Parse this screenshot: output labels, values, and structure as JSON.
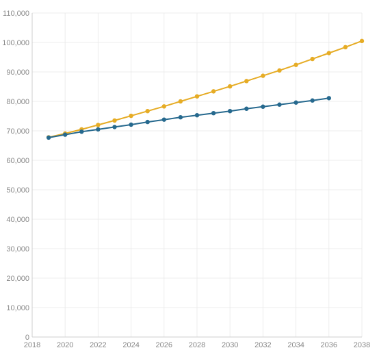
{
  "chart_data": {
    "type": "line",
    "title": "",
    "xlabel": "",
    "ylabel": "",
    "xlim": [
      2018,
      2038
    ],
    "ylim": [
      0,
      110000
    ],
    "x_ticks": [
      2018,
      2020,
      2022,
      2024,
      2026,
      2028,
      2030,
      2032,
      2034,
      2036,
      2038
    ],
    "x_tick_labels": [
      "2018",
      "2020",
      "2022",
      "2024",
      "2026",
      "2028",
      "2030",
      "2032",
      "2034",
      "2036",
      "2038"
    ],
    "y_ticks": [
      0,
      10000,
      20000,
      30000,
      40000,
      50000,
      60000,
      70000,
      80000,
      90000,
      100000,
      110000
    ],
    "y_tick_labels": [
      "0",
      "10,000",
      "20,000",
      "30,000",
      "40,000",
      "50,000",
      "60,000",
      "70,000",
      "80,000",
      "90,000",
      "100,000",
      "110,000"
    ],
    "grid": true,
    "legend": "none",
    "series": [
      {
        "color": "#e6ac25",
        "x": [
          2019,
          2020,
          2021,
          2022,
          2023,
          2024,
          2025,
          2026,
          2027,
          2028,
          2029,
          2030,
          2031,
          2032,
          2033,
          2034,
          2035,
          2036,
          2037,
          2038
        ],
        "values": [
          67800,
          69100,
          70500,
          72000,
          73500,
          75100,
          76700,
          78300,
          80000,
          81700,
          83400,
          85100,
          86900,
          88700,
          90500,
          92400,
          94400,
          96400,
          98400,
          100500
        ]
      },
      {
        "color": "#26698e",
        "x": [
          2019,
          2020,
          2021,
          2022,
          2023,
          2024,
          2025,
          2026,
          2027,
          2028,
          2029,
          2030,
          2031,
          2032,
          2033,
          2034,
          2035,
          2036
        ],
        "values": [
          67700,
          68700,
          69700,
          70500,
          71300,
          72100,
          73000,
          73800,
          74600,
          75300,
          76000,
          76700,
          77500,
          78200,
          78900,
          79600,
          80300,
          81100
        ]
      }
    ]
  }
}
